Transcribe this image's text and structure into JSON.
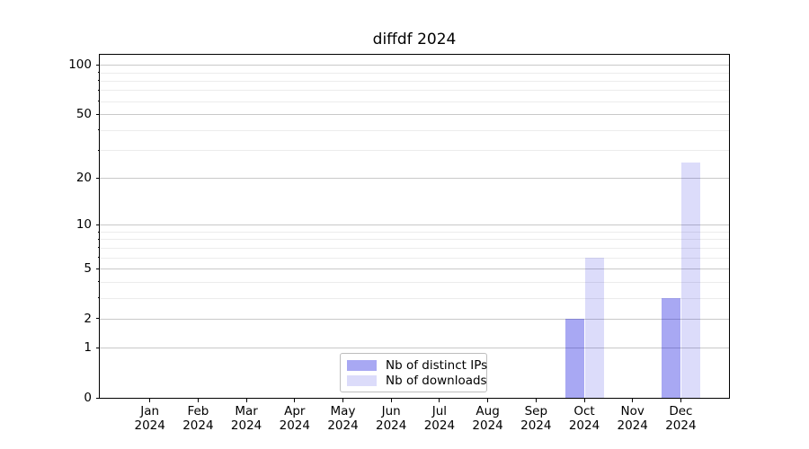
{
  "title": "diffdf 2024",
  "legend": {
    "items": [
      {
        "label": "Nb of distinct IPs"
      },
      {
        "label": "Nb of downloads"
      }
    ]
  },
  "colors": {
    "bar_distinct_ips": "rgba(13,13,222,0.36)",
    "bar_downloads": "rgba(13,13,222,0.145)",
    "grid_major": "#c9c9c9",
    "grid_minor": "#ececec",
    "axis": "#000000",
    "background": "#ffffff"
  },
  "chart_data": {
    "type": "bar",
    "title": "diffdf 2024",
    "xlabel": "",
    "ylabel": "",
    "scale": "log1p",
    "grid": true,
    "legend_position": "lower center",
    "categories": [
      "Jan",
      "Feb",
      "Mar",
      "Apr",
      "May",
      "Jun",
      "Jul",
      "Aug",
      "Sep",
      "Oct",
      "Nov",
      "Dec"
    ],
    "category_year": "2024",
    "series": [
      {
        "name": "Nb of distinct IPs",
        "color": "rgba(13,13,222,0.36)",
        "values": [
          0,
          0,
          0,
          0,
          0,
          0,
          0,
          0,
          0,
          2,
          0,
          3
        ]
      },
      {
        "name": "Nb of downloads",
        "color": "rgba(13,13,222,0.145)",
        "values": [
          0,
          0,
          0,
          0,
          0,
          0,
          0,
          0,
          0,
          6,
          0,
          25
        ]
      }
    ],
    "ylim": [
      0,
      115
    ],
    "y_major_ticks": [
      0,
      1,
      2,
      5,
      10,
      20,
      50,
      100
    ],
    "y_minor_ticks": [
      3,
      4,
      6,
      7,
      8,
      9,
      30,
      40,
      60,
      70,
      80,
      90
    ]
  }
}
